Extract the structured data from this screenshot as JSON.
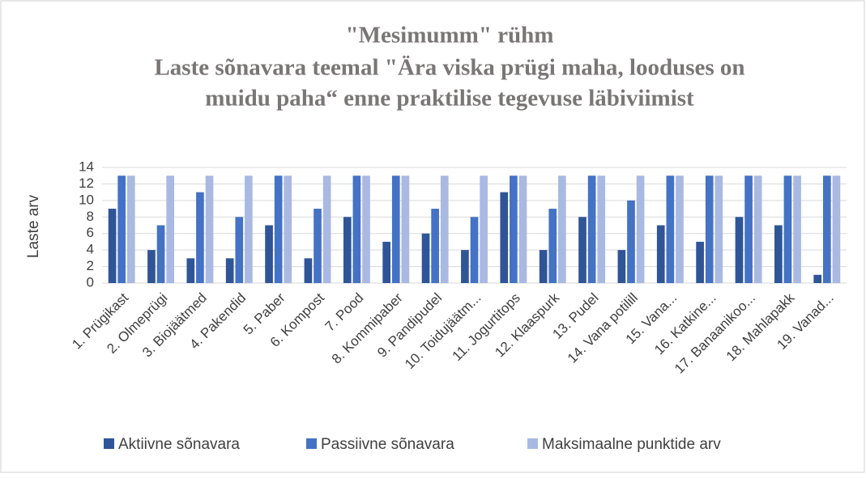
{
  "chart_data": {
    "type": "bar",
    "title": [
      "\"Mesimumm\" rühm",
      "Laste sõnavara teemal \"Ära viska prügi maha, looduses on",
      "muidu paha“ enne praktilise tegevuse läbiviimist"
    ],
    "ylabel": "Laste arv",
    "categories": [
      "1.   Prügikast",
      "2.   Olmeprügi",
      "3.   Biojäätmed",
      "4.   Pakendid",
      "5.   Paber",
      "6.   Kompost",
      "7.   Pood",
      "8.   Kommipaber",
      "9.   Pandipudel",
      "10. Toidujäätm...",
      "11. Jogurtitops",
      "12. Klaaspurk",
      "13. Pudel",
      "14. Vana potilill",
      "15. Vana...",
      "16. Katkine...",
      "17. Banaanikoo...",
      "18. Mahlapakk",
      "19. Vanad..."
    ],
    "series": [
      {
        "name": "Aktiivne sõnavara",
        "color": "#2f5597",
        "values": [
          9,
          4,
          3,
          3,
          7,
          3,
          8,
          5,
          6,
          4,
          11,
          4,
          8,
          4,
          7,
          5,
          8,
          7,
          1
        ]
      },
      {
        "name": "Passiivne sõnavara",
        "color": "#4472c4",
        "values": [
          13,
          7,
          11,
          8,
          13,
          9,
          13,
          13,
          9,
          8,
          13,
          9,
          13,
          10,
          13,
          13,
          13,
          13,
          13
        ]
      },
      {
        "name": "Maksimaalne punktide arv",
        "color": "#a9b9e2",
        "values": [
          13,
          13,
          13,
          13,
          13,
          13,
          13,
          13,
          13,
          13,
          13,
          13,
          13,
          13,
          13,
          13,
          13,
          13,
          13
        ]
      }
    ],
    "ylim": [
      0,
      14
    ],
    "yticks": [
      0,
      2,
      4,
      6,
      8,
      10,
      12,
      14
    ],
    "grid": true,
    "legend": "bottom"
  }
}
